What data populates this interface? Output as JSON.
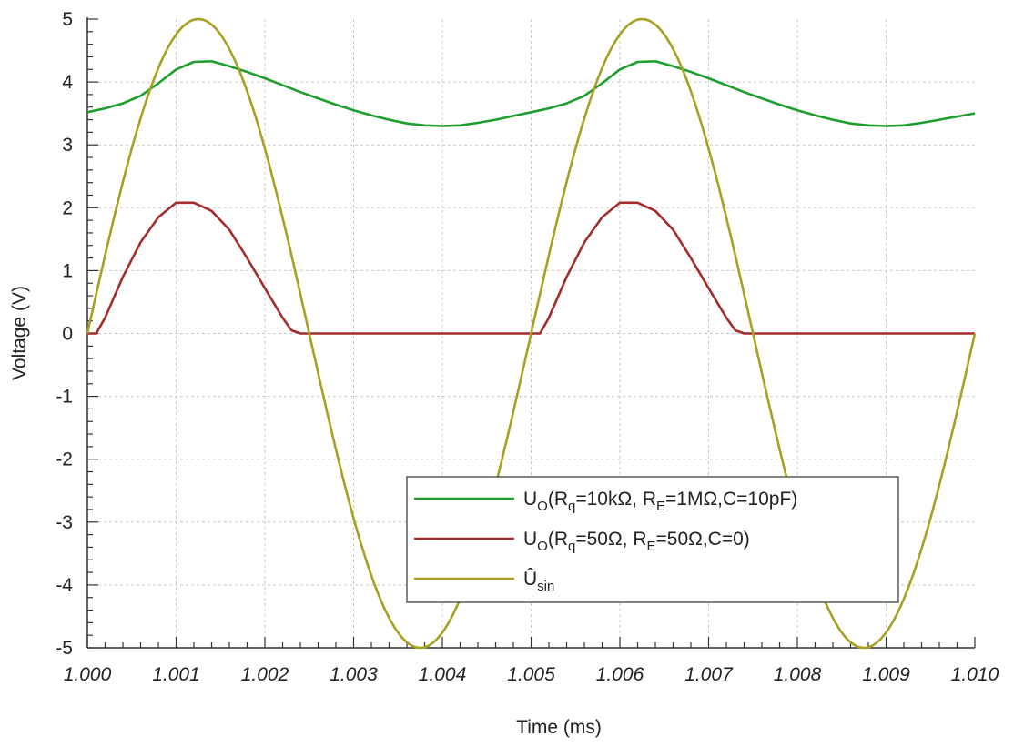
{
  "chart_data": {
    "type": "line",
    "xlabel": "Time (ms)",
    "ylabel": "Voltage (V)",
    "xlim": [
      1.0,
      1.01
    ],
    "ylim": [
      -5,
      5
    ],
    "x_ticks": [
      "1.000",
      "1.001",
      "1.002",
      "1.003",
      "1.004",
      "1.005",
      "1.006",
      "1.007",
      "1.008",
      "1.009",
      "1.010"
    ],
    "y_ticks": [
      "5",
      "4",
      "3",
      "2",
      "1",
      "0",
      "-1",
      "-2",
      "-3",
      "-4",
      "-5"
    ],
    "grid": true,
    "legend_position": "bottom-right",
    "series": [
      {
        "name_parts": [
          "U",
          "O",
          "(R",
          "q",
          "=10kΩ, R",
          "E",
          "=1MΩ,C=10pF)"
        ],
        "color": "#1e9e2e",
        "x": [
          1.0,
          1.0002,
          1.0004,
          1.0006,
          1.0008,
          1.001,
          1.0012,
          1.0014,
          1.0016,
          1.0018,
          1.002,
          1.0022,
          1.0024,
          1.0026,
          1.0028,
          1.003,
          1.0032,
          1.0034,
          1.0036,
          1.0038,
          1.004,
          1.0042,
          1.0044,
          1.0046,
          1.0048,
          1.005,
          1.0052,
          1.0054,
          1.0056,
          1.0058,
          1.006,
          1.0062,
          1.0064,
          1.0066,
          1.0068,
          1.007,
          1.0072,
          1.0074,
          1.0076,
          1.0078,
          1.008,
          1.0082,
          1.0084,
          1.0086,
          1.0088,
          1.009,
          1.0092,
          1.0094,
          1.0096,
          1.0098,
          1.01
        ],
        "y": [
          3.52,
          3.58,
          3.66,
          3.78,
          3.98,
          4.2,
          4.32,
          4.33,
          4.25,
          4.16,
          4.06,
          3.95,
          3.84,
          3.74,
          3.64,
          3.55,
          3.47,
          3.4,
          3.34,
          3.31,
          3.3,
          3.31,
          3.35,
          3.4,
          3.46,
          3.52,
          3.58,
          3.66,
          3.78,
          3.98,
          4.2,
          4.32,
          4.33,
          4.25,
          4.16,
          4.06,
          3.95,
          3.84,
          3.74,
          3.64,
          3.55,
          3.47,
          3.4,
          3.34,
          3.31,
          3.3,
          3.31,
          3.35,
          3.4,
          3.45,
          3.5
        ]
      },
      {
        "name_parts": [
          "U",
          "O",
          "(R",
          "q",
          "=50Ω, R",
          "E",
          "=50Ω,C=0)"
        ],
        "color": "#a32c2c",
        "x": [
          1.0,
          1.0001,
          1.0002,
          1.0004,
          1.0006,
          1.0008,
          1.001,
          1.0012,
          1.0014,
          1.0016,
          1.0018,
          1.002,
          1.0022,
          1.0023,
          1.0024,
          1.003,
          1.004,
          1.0049,
          1.005,
          1.0051,
          1.0052,
          1.0054,
          1.0056,
          1.0058,
          1.006,
          1.0062,
          1.0064,
          1.0066,
          1.0068,
          1.007,
          1.0072,
          1.0073,
          1.0074,
          1.008,
          1.009,
          1.01
        ],
        "y": [
          0.0,
          0.0,
          0.25,
          0.9,
          1.45,
          1.85,
          2.08,
          2.08,
          1.95,
          1.65,
          1.2,
          0.72,
          0.25,
          0.05,
          0.0,
          0.0,
          0.0,
          0.0,
          0.0,
          0.0,
          0.25,
          0.9,
          1.45,
          1.85,
          2.08,
          2.08,
          1.95,
          1.65,
          1.2,
          0.72,
          0.25,
          0.05,
          0.0,
          0.0,
          0.0,
          0.0
        ]
      },
      {
        "name_parts": [
          "Û",
          "sin"
        ],
        "color": "#a8a020",
        "function": "5*sin(2*pi*(t-1.000)/0.005)",
        "amplitude": 5,
        "period_ms": 0.005,
        "x_start": 1.0,
        "x_end": 1.01
      }
    ]
  }
}
